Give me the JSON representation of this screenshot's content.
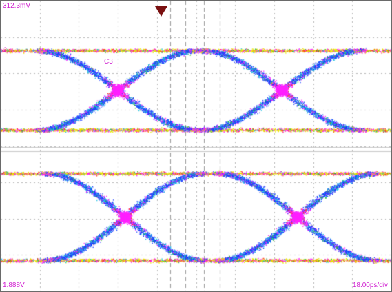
{
  "scope": {
    "top_scale": "312.3mV",
    "bottom_scale": "1.888V",
    "timebase": "18.00ps/div",
    "channel_label": "3",
    "channel_tag": "C3"
  },
  "display": {
    "background": "#ffffff",
    "grid_color": "#b8b8b8",
    "label_color": "#d020d0",
    "trigger_color": "#7a1010",
    "persistence_colors": [
      "#ff20ff",
      "#1a3aff",
      "#16c0e0",
      "#e8e800",
      "#ff3030",
      "#30c030"
    ]
  },
  "icons": {
    "trigger_marker": "trigger-arrow-down-icon"
  }
}
